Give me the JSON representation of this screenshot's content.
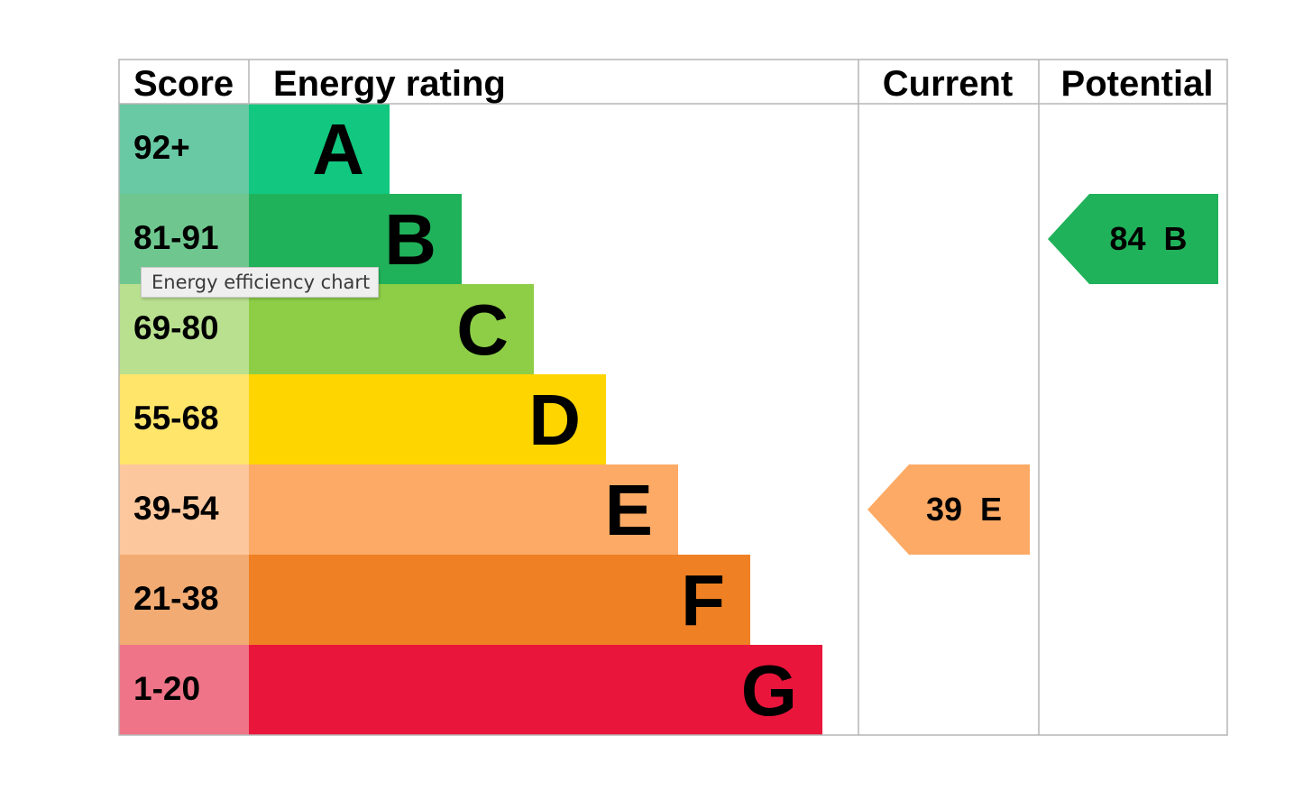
{
  "headers": {
    "score": "Score",
    "energy_rating": "Energy rating",
    "current": "Current",
    "potential": "Potential"
  },
  "tooltip": "Energy efficiency chart",
  "chart_data": {
    "type": "bar",
    "title": "",
    "categories": [
      "A",
      "B",
      "C",
      "D",
      "E",
      "F",
      "G"
    ],
    "bands": [
      {
        "letter": "A",
        "range": "92+",
        "color": "#12c77f",
        "score_bg": "#68c9a4"
      },
      {
        "letter": "B",
        "range": "81-91",
        "color": "#20b25a",
        "score_bg": "#6fc78f"
      },
      {
        "letter": "C",
        "range": "69-80",
        "color": "#8dce46",
        "score_bg": "#b9e08f"
      },
      {
        "letter": "D",
        "range": "55-68",
        "color": "#ffd500",
        "score_bg": "#ffe56a"
      },
      {
        "letter": "E",
        "range": "39-54",
        "color": "#fcaa65",
        "score_bg": "#fdc79d"
      },
      {
        "letter": "F",
        "range": "21-38",
        "color": "#ef8023",
        "score_bg": "#f2ab72"
      },
      {
        "letter": "G",
        "range": "1-20",
        "color": "#e9153b",
        "score_bg": "#ef7488"
      }
    ],
    "current": {
      "score": 39,
      "rating": "E",
      "label": "39  E",
      "color": "#fcaa65"
    },
    "potential": {
      "score": 84,
      "rating": "B",
      "label": "84  B",
      "color": "#20b25a"
    }
  }
}
